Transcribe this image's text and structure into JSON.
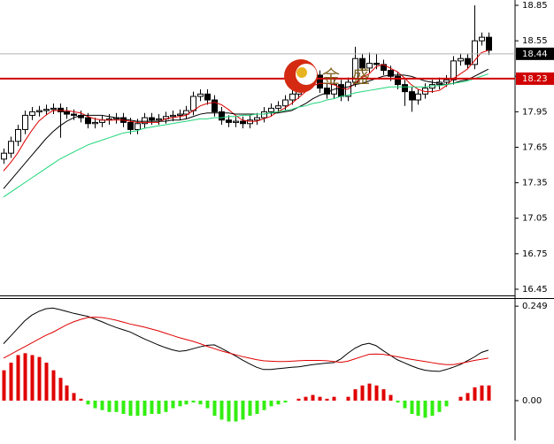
{
  "chart_data": [
    {
      "type": "candlestick",
      "watermark": "金盛",
      "up_color": "#ffffff",
      "down_color": "#000000",
      "outline_color": "#000000",
      "open": [
        17.55,
        17.6,
        17.7,
        17.8,
        17.92,
        17.95,
        17.96,
        17.97,
        17.98,
        17.95,
        17.93,
        17.92,
        17.9,
        17.85,
        17.86,
        17.88,
        17.89,
        17.9,
        17.86,
        17.8,
        17.85,
        17.9,
        17.88,
        17.89,
        17.91,
        17.92,
        17.93,
        17.96,
        18.08,
        18.1,
        18.05,
        17.95,
        17.88,
        17.86,
        17.87,
        17.85,
        17.88,
        17.9,
        17.95,
        17.98,
        18.0,
        18.05,
        18.1,
        18.2,
        18.24,
        18.26,
        18.15,
        18.1,
        18.18,
        18.08,
        18.2,
        18.4,
        18.32,
        18.36,
        18.35,
        18.3,
        18.25,
        18.18,
        18.12,
        18.05,
        18.1,
        18.15,
        18.18,
        18.2,
        18.22,
        18.38,
        18.4,
        18.35,
        18.55,
        18.58
      ],
      "high": [
        17.64,
        17.74,
        17.84,
        17.96,
        17.99,
        18.0,
        18.01,
        18.02,
        18.02,
        17.99,
        17.97,
        17.96,
        17.94,
        17.9,
        17.92,
        17.93,
        17.94,
        17.94,
        17.9,
        17.89,
        17.94,
        17.94,
        17.93,
        17.95,
        17.96,
        17.97,
        18.0,
        18.12,
        18.14,
        18.14,
        18.09,
        17.99,
        17.92,
        17.91,
        17.91,
        17.92,
        17.94,
        17.99,
        18.02,
        18.04,
        18.09,
        18.14,
        18.24,
        18.28,
        18.3,
        18.3,
        18.19,
        18.22,
        18.22,
        18.24,
        18.5,
        18.44,
        18.45,
        18.44,
        18.39,
        18.34,
        18.29,
        18.22,
        18.16,
        18.14,
        18.19,
        18.22,
        18.24,
        18.26,
        18.42,
        18.44,
        18.44,
        18.85,
        18.62,
        18.62
      ],
      "low": [
        17.51,
        17.56,
        17.66,
        17.76,
        17.88,
        17.91,
        17.92,
        17.93,
        17.73,
        17.89,
        17.88,
        17.86,
        17.81,
        17.81,
        17.82,
        17.84,
        17.85,
        17.82,
        17.76,
        17.76,
        17.81,
        17.84,
        17.84,
        17.85,
        17.87,
        17.88,
        17.89,
        17.92,
        18.04,
        18.01,
        17.91,
        17.84,
        17.82,
        17.82,
        17.81,
        17.81,
        17.84,
        17.86,
        17.91,
        17.94,
        17.96,
        18.01,
        18.06,
        18.16,
        18.2,
        18.11,
        18.06,
        18.06,
        18.04,
        18.04,
        18.16,
        18.28,
        18.28,
        18.31,
        18.26,
        18.21,
        18.14,
        18.0,
        17.95,
        18.01,
        18.06,
        18.11,
        18.14,
        18.16,
        18.18,
        18.34,
        18.31,
        18.31,
        18.51,
        18.43
      ],
      "close": [
        17.6,
        17.7,
        17.8,
        17.92,
        17.95,
        17.96,
        17.97,
        17.98,
        17.95,
        17.93,
        17.92,
        17.9,
        17.85,
        17.86,
        17.88,
        17.89,
        17.9,
        17.86,
        17.8,
        17.85,
        17.9,
        17.88,
        17.89,
        17.91,
        17.92,
        17.93,
        17.96,
        18.08,
        18.1,
        18.05,
        17.95,
        17.88,
        17.86,
        17.87,
        17.85,
        17.88,
        17.9,
        17.95,
        17.98,
        18.0,
        18.05,
        18.1,
        18.2,
        18.24,
        18.26,
        18.15,
        18.1,
        18.18,
        18.08,
        18.2,
        18.4,
        18.32,
        18.36,
        18.35,
        18.3,
        18.25,
        18.18,
        18.12,
        18.05,
        18.1,
        18.15,
        18.18,
        18.2,
        18.22,
        18.38,
        18.4,
        18.35,
        18.55,
        18.58,
        18.47
      ],
      "series": [
        {
          "color": "#e00000",
          "values": [
            17.45,
            17.52,
            17.6,
            17.7,
            17.79,
            17.87,
            17.92,
            17.96,
            17.96,
            17.96,
            17.95,
            17.94,
            17.91,
            17.89,
            17.88,
            17.88,
            17.88,
            17.88,
            17.87,
            17.86,
            17.86,
            17.86,
            17.86,
            17.89,
            17.9,
            17.91,
            17.92,
            17.96,
            18.0,
            18.02,
            18.03,
            18.01,
            17.97,
            17.92,
            17.88,
            17.87,
            17.87,
            17.89,
            17.91,
            17.95,
            17.98,
            18.02,
            18.07,
            18.12,
            18.17,
            18.19,
            18.19,
            18.18,
            18.15,
            18.14,
            18.19,
            18.24,
            18.27,
            18.33,
            18.35,
            18.32,
            18.29,
            18.24,
            18.18,
            18.14,
            18.12,
            18.12,
            18.13,
            18.17,
            18.23,
            18.27,
            18.31,
            18.38,
            18.45,
            18.47
          ]
        },
        {
          "color": "#000000",
          "values": [
            17.3,
            17.37,
            17.44,
            17.51,
            17.58,
            17.65,
            17.72,
            17.78,
            17.83,
            17.87,
            17.9,
            17.92,
            17.92,
            17.92,
            17.92,
            17.91,
            17.9,
            17.89,
            17.88,
            17.87,
            17.87,
            17.87,
            17.87,
            17.87,
            17.88,
            17.88,
            17.89,
            17.91,
            17.93,
            17.94,
            17.94,
            17.94,
            17.94,
            17.93,
            17.93,
            17.93,
            17.93,
            17.93,
            17.94,
            17.94,
            17.95,
            17.96,
            17.99,
            18.02,
            18.06,
            18.09,
            18.11,
            18.14,
            18.15,
            18.16,
            18.18,
            18.19,
            18.21,
            18.23,
            18.25,
            18.26,
            18.26,
            18.26,
            18.25,
            18.23,
            18.21,
            18.2,
            18.19,
            18.18,
            18.19,
            18.21,
            18.22,
            18.25,
            18.28,
            18.31
          ]
        },
        {
          "color": "#1fd67a",
          "values": [
            17.23,
            17.27,
            17.31,
            17.35,
            17.39,
            17.43,
            17.47,
            17.51,
            17.55,
            17.58,
            17.61,
            17.64,
            17.67,
            17.69,
            17.71,
            17.73,
            17.75,
            17.77,
            17.78,
            17.79,
            17.81,
            17.82,
            17.83,
            17.84,
            17.85,
            17.86,
            17.87,
            17.88,
            17.89,
            17.89,
            17.9,
            17.9,
            17.91,
            17.91,
            17.92,
            17.92,
            17.93,
            17.93,
            17.94,
            17.95,
            17.96,
            17.97,
            17.99,
            18.0,
            18.02,
            18.03,
            18.05,
            18.06,
            18.08,
            18.09,
            18.11,
            18.12,
            18.13,
            18.14,
            18.15,
            18.16,
            18.16,
            18.16,
            18.16,
            18.16,
            18.16,
            18.17,
            18.17,
            18.18,
            18.19,
            18.2,
            18.21,
            18.23,
            18.25,
            18.27
          ]
        }
      ],
      "price_lines": [
        {
          "value": 18.44,
          "color": "#b0b0b0",
          "label_color": "#000000"
        },
        {
          "value": 18.23,
          "color": "#d00000",
          "label_color": "#d00000"
        }
      ],
      "ylim": [
        16.405,
        18.895
      ],
      "yticks": [
        18.85,
        18.55,
        18.25,
        17.95,
        17.65,
        17.35,
        17.05,
        16.75,
        16.45
      ]
    },
    {
      "type": "macd",
      "up_color": "#e00000",
      "down_color": "#33ee11",
      "histogram": [
        0.08,
        0.1,
        0.12,
        0.125,
        0.12,
        0.115,
        0.1,
        0.08,
        0.06,
        0.04,
        0.02,
        0.005,
        -0.01,
        -0.02,
        -0.025,
        -0.03,
        -0.03,
        -0.035,
        -0.04,
        -0.04,
        -0.04,
        -0.035,
        -0.035,
        -0.03,
        -0.02,
        -0.015,
        -0.01,
        -0.005,
        -0.01,
        -0.02,
        -0.04,
        -0.05,
        -0.055,
        -0.055,
        -0.05,
        -0.04,
        -0.035,
        -0.025,
        -0.015,
        -0.01,
        -0.005,
        0.0,
        0.005,
        0.01,
        0.015,
        0.01,
        0.005,
        0.01,
        0.0,
        0.01,
        0.03,
        0.04,
        0.045,
        0.04,
        0.03,
        0.015,
        -0.005,
        -0.02,
        -0.035,
        -0.04,
        -0.045,
        -0.04,
        -0.03,
        -0.015,
        0.0,
        0.01,
        0.02,
        0.035,
        0.04,
        0.04
      ],
      "series": [
        {
          "color": "#000000",
          "values": [
            0.15,
            0.17,
            0.19,
            0.21,
            0.225,
            0.235,
            0.242,
            0.244,
            0.24,
            0.235,
            0.23,
            0.226,
            0.222,
            0.215,
            0.208,
            0.2,
            0.193,
            0.187,
            0.181,
            0.172,
            0.163,
            0.155,
            0.147,
            0.14,
            0.134,
            0.13,
            0.132,
            0.137,
            0.142,
            0.146,
            0.147,
            0.138,
            0.128,
            0.118,
            0.107,
            0.097,
            0.088,
            0.082,
            0.082,
            0.084,
            0.086,
            0.088,
            0.089,
            0.092,
            0.095,
            0.097,
            0.099,
            0.1,
            0.11,
            0.125,
            0.138,
            0.147,
            0.151,
            0.145,
            0.132,
            0.12,
            0.108,
            0.1,
            0.092,
            0.085,
            0.08,
            0.078,
            0.077,
            0.082,
            0.088,
            0.095,
            0.105,
            0.115,
            0.127,
            0.133
          ]
        },
        {
          "color": "#e00000",
          "values": [
            0.112,
            0.122,
            0.132,
            0.142,
            0.152,
            0.162,
            0.172,
            0.18,
            0.19,
            0.2,
            0.208,
            0.214,
            0.219,
            0.22,
            0.219,
            0.216,
            0.212,
            0.207,
            0.202,
            0.198,
            0.194,
            0.189,
            0.184,
            0.178,
            0.172,
            0.166,
            0.161,
            0.156,
            0.15,
            0.143,
            0.137,
            0.131,
            0.126,
            0.121,
            0.116,
            0.112,
            0.108,
            0.105,
            0.104,
            0.103,
            0.103,
            0.104,
            0.105,
            0.106,
            0.106,
            0.106,
            0.105,
            0.103,
            0.101,
            0.104,
            0.11,
            0.116,
            0.122,
            0.123,
            0.122,
            0.119,
            0.116,
            0.112,
            0.109,
            0.106,
            0.103,
            0.1,
            0.097,
            0.095,
            0.095,
            0.098,
            0.102,
            0.106,
            0.109,
            0.112
          ]
        }
      ],
      "ylim": [
        -0.105,
        0.268
      ],
      "yticks": [
        0.249,
        {
          "value": 0,
          "label": "0.00"
        }
      ]
    }
  ]
}
